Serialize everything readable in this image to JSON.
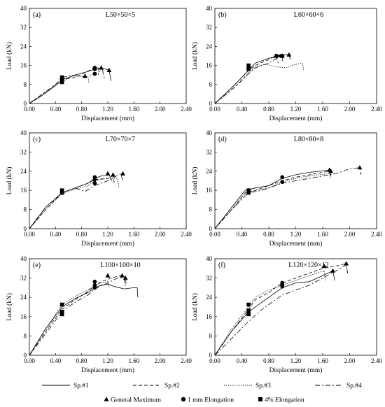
{
  "chart_data": [
    {
      "type": "line",
      "panel": "(a)",
      "title": "L50×50×5",
      "xlabel": "Displacement (mm)",
      "ylabel": "Load (kN)",
      "xlim": [
        0,
        2.4
      ],
      "ylim": [
        0,
        40
      ],
      "xticks": [
        "0.00",
        "0.40",
        "0.80",
        "1.20",
        "1.60",
        "2.00",
        "2.40"
      ],
      "yticks": [
        "0",
        "8",
        "16",
        "24",
        "32",
        "40"
      ],
      "series": [
        {
          "name": "Sp.#1",
          "style": "solid",
          "x": [
            0,
            0.2,
            0.4,
            0.5,
            0.7,
            0.9,
            1.0,
            1.1,
            1.22,
            1.25
          ],
          "y": [
            0,
            3.5,
            7.5,
            10,
            12,
            13.5,
            14.5,
            15,
            14,
            9.5
          ]
        },
        {
          "name": "Sp.#2",
          "style": "dashed",
          "x": [
            0,
            0.2,
            0.4,
            0.5,
            0.7,
            0.85,
            1.0,
            1.05,
            1.06
          ],
          "y": [
            0,
            3.5,
            7.5,
            10,
            11,
            13,
            15,
            15,
            12
          ]
        },
        {
          "name": "Sp.#3",
          "style": "dotted",
          "x": [
            0,
            0.2,
            0.4,
            0.5,
            0.65,
            0.85,
            0.9,
            0.91
          ],
          "y": [
            0,
            4,
            8,
            9,
            11.5,
            11.5,
            11,
            8.5
          ]
        },
        {
          "name": "Sp.#4",
          "style": "dashdot",
          "x": [
            0,
            0.2,
            0.4,
            0.5,
            0.7,
            0.85,
            1.0,
            1.12,
            1.15
          ],
          "y": [
            0,
            4,
            8,
            11,
            12,
            11,
            12.5,
            14,
            10.5
          ]
        }
      ],
      "general_maximum": [
        [
          1.1,
          15
        ],
        [
          1.22,
          14
        ],
        [
          0.85,
          11.5
        ]
      ],
      "elongation_1mm": [
        [
          1.0,
          14.5
        ],
        [
          1.0,
          15
        ],
        [
          1.0,
          12.5
        ]
      ],
      "elongation_4pct": [
        [
          0.5,
          10
        ],
        [
          0.5,
          11
        ],
        [
          0.5,
          9
        ]
      ]
    },
    {
      "type": "line",
      "panel": "(b)",
      "title": "L60×60×6",
      "xlabel": "Displacement (mm)",
      "ylabel": "Load (kN)",
      "xlim": [
        0,
        2.4
      ],
      "ylim": [
        0,
        40
      ],
      "xticks": [
        "0.00",
        "0.40",
        "0.80",
        "1.20",
        "1.60",
        "2.00",
        "2.40"
      ],
      "yticks": [
        "0",
        "8",
        "16",
        "24",
        "32",
        "40"
      ],
      "series": [
        {
          "name": "Sp.#1",
          "style": "solid",
          "x": [
            0,
            0.3,
            0.5,
            0.6,
            0.8,
            0.95,
            1.05,
            1.1,
            1.12
          ],
          "y": [
            0,
            8,
            14,
            17,
            19,
            20,
            20.5,
            20.5,
            18.5
          ]
        },
        {
          "name": "Sp.#2",
          "style": "dashed",
          "x": [
            0,
            0.3,
            0.5,
            0.6,
            0.8,
            0.9,
            0.94
          ],
          "y": [
            0,
            8,
            14,
            16,
            18.5,
            20,
            17
          ]
        },
        {
          "name": "Sp.#3",
          "style": "dotted",
          "x": [
            0,
            0.3,
            0.5,
            0.6,
            0.75,
            0.9,
            1.05,
            1.2,
            1.3,
            1.32
          ],
          "y": [
            0,
            7,
            13,
            15.5,
            16.5,
            15.5,
            15,
            16.5,
            17,
            13.5
          ]
        },
        {
          "name": "Sp.#4",
          "style": "dashdot",
          "x": [
            0,
            0.3,
            0.5,
            0.6,
            0.8,
            0.95,
            1.0,
            1.01
          ],
          "y": [
            0,
            7,
            12.5,
            15,
            17,
            19.5,
            20,
            17
          ]
        }
      ],
      "general_maximum": [
        [
          1.1,
          20.5
        ],
        [
          1.0,
          20
        ],
        [
          0.9,
          20
        ]
      ],
      "elongation_1mm": [
        [
          0.92,
          20
        ],
        [
          0.98,
          20
        ],
        [
          1.0,
          20
        ]
      ],
      "elongation_4pct": [
        [
          0.5,
          15
        ],
        [
          0.5,
          16
        ],
        [
          0.5,
          14.5
        ]
      ]
    },
    {
      "type": "line",
      "panel": "(c)",
      "title": "L70×70×7",
      "xlabel": "Displacement (mm)",
      "ylabel": "Load (kN)",
      "xlim": [
        0,
        2.4
      ],
      "ylim": [
        0,
        40
      ],
      "xticks": [
        "0.00",
        "0.40",
        "0.80",
        "1.20",
        "1.60",
        "2.00",
        "2.40"
      ],
      "yticks": [
        "0",
        "8",
        "16",
        "24",
        "32",
        "40"
      ],
      "series": [
        {
          "name": "Sp.#1",
          "style": "solid",
          "x": [
            0,
            0.25,
            0.5,
            0.7,
            0.9,
            1.0,
            1.1,
            1.22,
            1.26
          ],
          "y": [
            0,
            9,
            15,
            17,
            19,
            21,
            22,
            22.5,
            20
          ]
        },
        {
          "name": "Sp.#2",
          "style": "dashed",
          "x": [
            0,
            0.25,
            0.5,
            0.7,
            0.9,
            1.0,
            1.2,
            1.28,
            1.3
          ],
          "y": [
            0,
            8,
            15,
            17,
            19,
            20.5,
            21,
            22,
            19
          ]
        },
        {
          "name": "Sp.#3",
          "style": "dotted",
          "x": [
            0,
            0.25,
            0.5,
            0.7,
            0.9,
            1.0,
            1.2,
            1.35,
            1.37
          ],
          "y": [
            0,
            8,
            14.5,
            16.5,
            18,
            20,
            21,
            21,
            17
          ]
        },
        {
          "name": "Sp.#4",
          "style": "dashdot",
          "x": [
            0,
            0.25,
            0.5,
            0.7,
            0.85,
            1.0,
            1.2,
            1.4,
            1.43
          ],
          "y": [
            0,
            9,
            15,
            17,
            15.5,
            18,
            20,
            23,
            20
          ]
        }
      ],
      "general_maximum": [
        [
          1.2,
          23
        ],
        [
          1.28,
          22.5
        ],
        [
          1.43,
          23
        ]
      ],
      "elongation_1mm": [
        [
          1.0,
          21.5
        ],
        [
          1.0,
          20.5
        ],
        [
          1.0,
          19
        ]
      ],
      "elongation_4pct": [
        [
          0.5,
          15.5
        ],
        [
          0.5,
          16
        ],
        [
          0.5,
          15
        ]
      ]
    },
    {
      "type": "line",
      "panel": "(d)",
      "title": "L80×80×8",
      "xlabel": "Displacement (mm)",
      "ylabel": "Load (kN)",
      "xlim": [
        0,
        2.4
      ],
      "ylim": [
        0,
        40
      ],
      "xticks": [
        "0.00",
        "0.40",
        "0.80",
        "1.20",
        "1.60",
        "2.00",
        "2.40"
      ],
      "yticks": [
        "0",
        "8",
        "16",
        "24",
        "32",
        "40"
      ],
      "series": [
        {
          "name": "Sp.#1",
          "style": "solid",
          "x": [
            0,
            0.25,
            0.45,
            0.6,
            0.8,
            1.0,
            1.2,
            1.4,
            1.7,
            1.72
          ],
          "y": [
            0,
            9,
            16,
            17,
            18,
            21,
            22.5,
            23.5,
            24.5,
            22
          ]
        },
        {
          "name": "Sp.#2",
          "style": "dashed",
          "x": [
            0,
            0.25,
            0.45,
            0.6,
            0.8,
            1.0,
            1.2,
            1.5,
            1.7,
            1.72
          ],
          "y": [
            0,
            8,
            15,
            16,
            18,
            20,
            21.5,
            23,
            24,
            21.5
          ]
        },
        {
          "name": "Sp.#3",
          "style": "dotted",
          "x": [
            0,
            0.25,
            0.45,
            0.6,
            0.8,
            1.0,
            1.2,
            1.4,
            1.7,
            1.72
          ],
          "y": [
            0,
            8,
            14.5,
            16,
            17,
            19.5,
            21,
            22,
            23,
            21
          ]
        },
        {
          "name": "Sp.#4",
          "style": "dashdot",
          "x": [
            0,
            0.25,
            0.5,
            0.7,
            0.9,
            1.0,
            1.2,
            1.5,
            1.8,
            2.0,
            2.15,
            2.17
          ],
          "y": [
            0,
            8,
            15,
            16,
            18,
            19,
            20,
            21.5,
            23,
            25,
            25.5,
            22.5
          ]
        }
      ],
      "general_maximum": [
        [
          1.7,
          24.5
        ],
        [
          1.72,
          24
        ],
        [
          2.15,
          25.5
        ]
      ],
      "elongation_1mm": [
        [
          1.0,
          21.5
        ],
        [
          1.0,
          19.5
        ]
      ],
      "elongation_4pct": [
        [
          0.5,
          16
        ],
        [
          0.5,
          15
        ]
      ]
    },
    {
      "type": "line",
      "panel": "(e)",
      "title": "L100×100×10",
      "xlabel": "Displacement (mm)",
      "ylabel": "Load (kN)",
      "xlim": [
        0,
        2.4
      ],
      "ylim": [
        0,
        40
      ],
      "xticks": [
        "0.00",
        "0.40",
        "0.80",
        "1.20",
        "1.60",
        "2.00",
        "2.40"
      ],
      "yticks": [
        "0",
        "8",
        "16",
        "24",
        "32",
        "40"
      ],
      "series": [
        {
          "name": "Sp.#1",
          "style": "solid",
          "x": [
            0,
            0.25,
            0.5,
            0.7,
            0.9,
            1.0,
            1.1,
            1.2,
            1.3,
            1.45,
            1.6,
            1.65,
            1.66
          ],
          "y": [
            0,
            11,
            20,
            23.5,
            26,
            28,
            29,
            29.5,
            28.5,
            27.5,
            28,
            28,
            24
          ]
        },
        {
          "name": "Sp.#2",
          "style": "dashed",
          "x": [
            0,
            0.25,
            0.5,
            0.7,
            0.9,
            1.0,
            1.1,
            1.25,
            1.4,
            1.47,
            1.48
          ],
          "y": [
            0,
            10,
            19,
            23,
            26.5,
            29,
            30.5,
            32,
            33,
            33,
            29
          ]
        },
        {
          "name": "Sp.#3",
          "style": "dotted",
          "x": [
            0,
            0.25,
            0.5,
            0.7,
            0.9,
            1.0,
            1.1,
            1.2,
            1.22
          ],
          "y": [
            0,
            11,
            21,
            24.5,
            27,
            29,
            30,
            30.5,
            28
          ]
        },
        {
          "name": "Sp.#4",
          "style": "dashdot",
          "x": [
            0,
            0.25,
            0.5,
            0.7,
            0.9,
            1.0,
            1.2,
            1.35,
            1.45,
            1.47
          ],
          "y": [
            0,
            9,
            18,
            22,
            25,
            27.5,
            30,
            32,
            32,
            28.5
          ]
        }
      ],
      "general_maximum": [
        [
          1.2,
          33
        ],
        [
          1.42,
          33
        ],
        [
          1.47,
          32
        ]
      ],
      "elongation_1mm": [
        [
          1.0,
          30.5
        ],
        [
          1.0,
          29
        ],
        [
          1.0,
          28
        ]
      ],
      "elongation_4pct": [
        [
          0.5,
          21
        ],
        [
          0.5,
          18
        ],
        [
          0.5,
          17
        ]
      ]
    },
    {
      "type": "line",
      "panel": "(f)",
      "title": "L120×120×12",
      "xlabel": "Displacement (mm)",
      "ylabel": "Load (kN)",
      "xlim": [
        0,
        2.4
      ],
      "ylim": [
        0,
        40
      ],
      "xticks": [
        "0.00",
        "0.40",
        "0.80",
        "1.20",
        "1.60",
        "2.00",
        "2.40"
      ],
      "yticks": [
        "0",
        "8",
        "16",
        "24",
        "32",
        "40"
      ],
      "series": [
        {
          "name": "Sp.#1",
          "style": "solid",
          "x": [
            0,
            0.25,
            0.5,
            0.65,
            0.8,
            1.0,
            1.2,
            1.4,
            1.6,
            1.75,
            1.78
          ],
          "y": [
            0,
            10,
            18,
            21,
            24,
            28,
            30,
            30.5,
            33,
            35,
            31
          ]
        },
        {
          "name": "Sp.#2",
          "style": "dashed",
          "x": [
            0,
            0.25,
            0.5,
            0.6,
            0.8,
            1.0,
            1.2,
            1.4,
            1.6,
            1.8,
            1.95,
            1.97
          ],
          "y": [
            0,
            10,
            19,
            23,
            26,
            30,
            32,
            34,
            36,
            37,
            38,
            34
          ]
        },
        {
          "name": "Sp.#3",
          "style": "dotted",
          "x": [
            0,
            0.25,
            0.5,
            0.6,
            0.8,
            1.0,
            1.2,
            1.4,
            1.62,
            1.64
          ],
          "y": [
            0,
            11,
            20,
            24,
            27,
            29,
            31,
            33,
            35,
            31
          ]
        },
        {
          "name": "Sp.#4",
          "style": "dashdot",
          "x": [
            0,
            0.25,
            0.5,
            0.7,
            0.9,
            1.0,
            1.2,
            1.4,
            1.6,
            1.8,
            1.95,
            1.97
          ],
          "y": [
            0,
            7,
            14,
            19,
            23,
            25,
            27,
            29,
            32,
            35,
            37.5,
            34
          ]
        }
      ],
      "general_maximum": [
        [
          1.62,
          37
        ],
        [
          1.75,
          35
        ],
        [
          1.95,
          38
        ]
      ],
      "elongation_1mm": [
        [
          1.0,
          30
        ],
        [
          1.0,
          29
        ],
        [
          1.0,
          28.5
        ]
      ],
      "elongation_4pct": [
        [
          0.5,
          21
        ],
        [
          0.5,
          18.5
        ],
        [
          0.5,
          17
        ]
      ]
    }
  ],
  "legend": {
    "lines": [
      {
        "label": "Sp.#1",
        "style": "solid"
      },
      {
        "label": "Sp.#2",
        "style": "dashed"
      },
      {
        "label": "Sp.#3",
        "style": "dotted"
      },
      {
        "label": "Sp.#4",
        "style": "dashdot"
      }
    ],
    "markers": [
      {
        "label": "General Maximum",
        "shape": "triangle"
      },
      {
        "label": "1 mm Elongation",
        "shape": "circle"
      },
      {
        "label": "4% Elongation",
        "shape": "square"
      }
    ]
  }
}
